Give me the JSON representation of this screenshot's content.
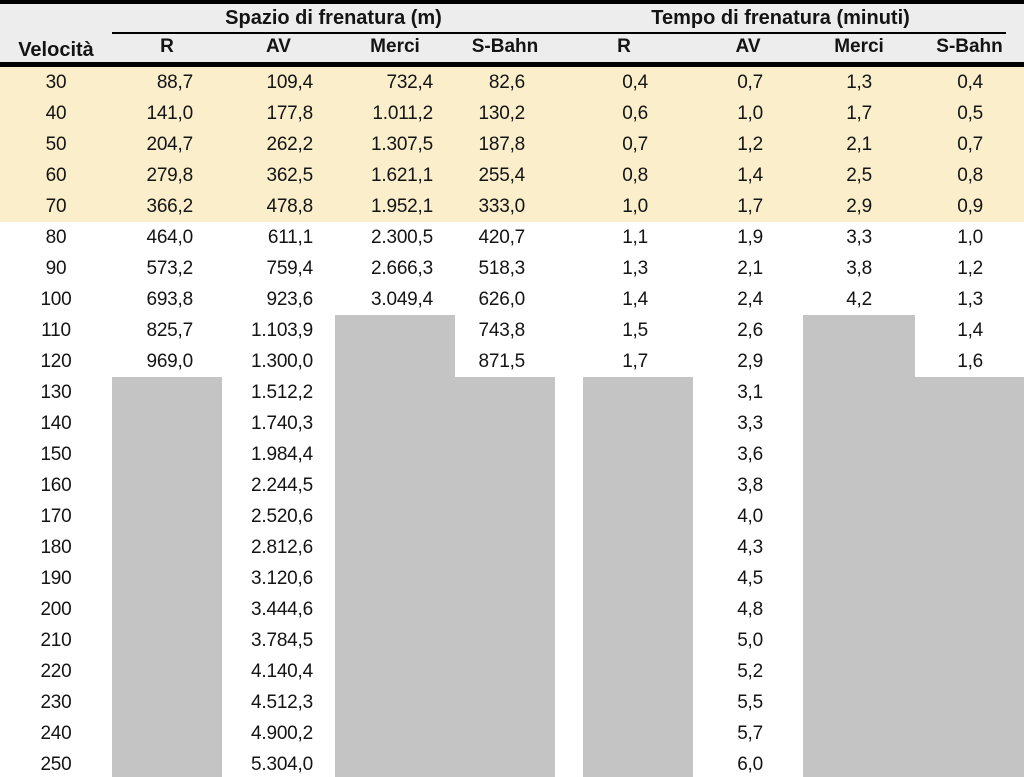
{
  "colors": {
    "highlight_row_bg": "#faeecb",
    "missing_cell_bg": "#c4c4c4",
    "header_bg": "#ededed",
    "rule_color": "#000000"
  },
  "chart_data": {
    "type": "table",
    "velocity_header": "Velocità",
    "group_headers": [
      "Spazio di frenatura (m)",
      "Tempo di frenatura (minuti)"
    ],
    "sub_headers": [
      "R",
      "AV",
      "Merci",
      "S-Bahn",
      "R",
      "AV",
      "Merci",
      "S-Bahn"
    ],
    "highlighted_speeds": [
      30,
      40,
      50,
      60,
      70
    ],
    "missing_data_note": "gray blocks = no value",
    "rows": [
      {
        "velocita": "30",
        "highlight": true,
        "cells": [
          "88,7",
          "109,4",
          "732,4",
          "82,6",
          "0,4",
          "0,7",
          "1,3",
          "0,4"
        ]
      },
      {
        "velocita": "40",
        "highlight": true,
        "cells": [
          "141,0",
          "177,8",
          "1.011,2",
          "130,2",
          "0,6",
          "1,0",
          "1,7",
          "0,5"
        ]
      },
      {
        "velocita": "50",
        "highlight": true,
        "cells": [
          "204,7",
          "262,2",
          "1.307,5",
          "187,8",
          "0,7",
          "1,2",
          "2,1",
          "0,7"
        ]
      },
      {
        "velocita": "60",
        "highlight": true,
        "cells": [
          "279,8",
          "362,5",
          "1.621,1",
          "255,4",
          "0,8",
          "1,4",
          "2,5",
          "0,8"
        ]
      },
      {
        "velocita": "70",
        "highlight": true,
        "cells": [
          "366,2",
          "478,8",
          "1.952,1",
          "333,0",
          "1,0",
          "1,7",
          "2,9",
          "0,9"
        ]
      },
      {
        "velocita": "80",
        "highlight": false,
        "cells": [
          "464,0",
          "611,1",
          "2.300,5",
          "420,7",
          "1,1",
          "1,9",
          "3,3",
          "1,0"
        ]
      },
      {
        "velocita": "90",
        "highlight": false,
        "cells": [
          "573,2",
          "759,4",
          "2.666,3",
          "518,3",
          "1,3",
          "2,1",
          "3,8",
          "1,2"
        ]
      },
      {
        "velocita": "100",
        "highlight": false,
        "cells": [
          "693,8",
          "923,6",
          "3.049,4",
          "626,0",
          "1,4",
          "2,4",
          "4,2",
          "1,3"
        ]
      },
      {
        "velocita": "110",
        "highlight": false,
        "cells": [
          "825,7",
          "1.103,9",
          null,
          "743,8",
          "1,5",
          "2,6",
          null,
          "1,4"
        ]
      },
      {
        "velocita": "120",
        "highlight": false,
        "cells": [
          "969,0",
          "1.300,0",
          null,
          "871,5",
          "1,7",
          "2,9",
          null,
          "1,6"
        ]
      },
      {
        "velocita": "130",
        "highlight": false,
        "cells": [
          null,
          "1.512,2",
          null,
          null,
          null,
          "3,1",
          null,
          null
        ]
      },
      {
        "velocita": "140",
        "highlight": false,
        "cells": [
          null,
          "1.740,3",
          null,
          null,
          null,
          "3,3",
          null,
          null
        ]
      },
      {
        "velocita": "150",
        "highlight": false,
        "cells": [
          null,
          "1.984,4",
          null,
          null,
          null,
          "3,6",
          null,
          null
        ]
      },
      {
        "velocita": "160",
        "highlight": false,
        "cells": [
          null,
          "2.244,5",
          null,
          null,
          null,
          "3,8",
          null,
          null
        ]
      },
      {
        "velocita": "170",
        "highlight": false,
        "cells": [
          null,
          "2.520,6",
          null,
          null,
          null,
          "4,0",
          null,
          null
        ]
      },
      {
        "velocita": "180",
        "highlight": false,
        "cells": [
          null,
          "2.812,6",
          null,
          null,
          null,
          "4,3",
          null,
          null
        ]
      },
      {
        "velocita": "190",
        "highlight": false,
        "cells": [
          null,
          "3.120,6",
          null,
          null,
          null,
          "4,5",
          null,
          null
        ]
      },
      {
        "velocita": "200",
        "highlight": false,
        "cells": [
          null,
          "3.444,6",
          null,
          null,
          null,
          "4,8",
          null,
          null
        ]
      },
      {
        "velocita": "210",
        "highlight": false,
        "cells": [
          null,
          "3.784,5",
          null,
          null,
          null,
          "5,0",
          null,
          null
        ]
      },
      {
        "velocita": "220",
        "highlight": false,
        "cells": [
          null,
          "4.140,4",
          null,
          null,
          null,
          "5,2",
          null,
          null
        ]
      },
      {
        "velocita": "230",
        "highlight": false,
        "cells": [
          null,
          "4.512,3",
          null,
          null,
          null,
          "5,5",
          null,
          null
        ]
      },
      {
        "velocita": "240",
        "highlight": false,
        "cells": [
          null,
          "4.900,2",
          null,
          null,
          null,
          "5,7",
          null,
          null
        ]
      },
      {
        "velocita": "250",
        "highlight": false,
        "cells": [
          null,
          "5.304,0",
          null,
          null,
          null,
          "6,0",
          null,
          null
        ]
      }
    ]
  }
}
